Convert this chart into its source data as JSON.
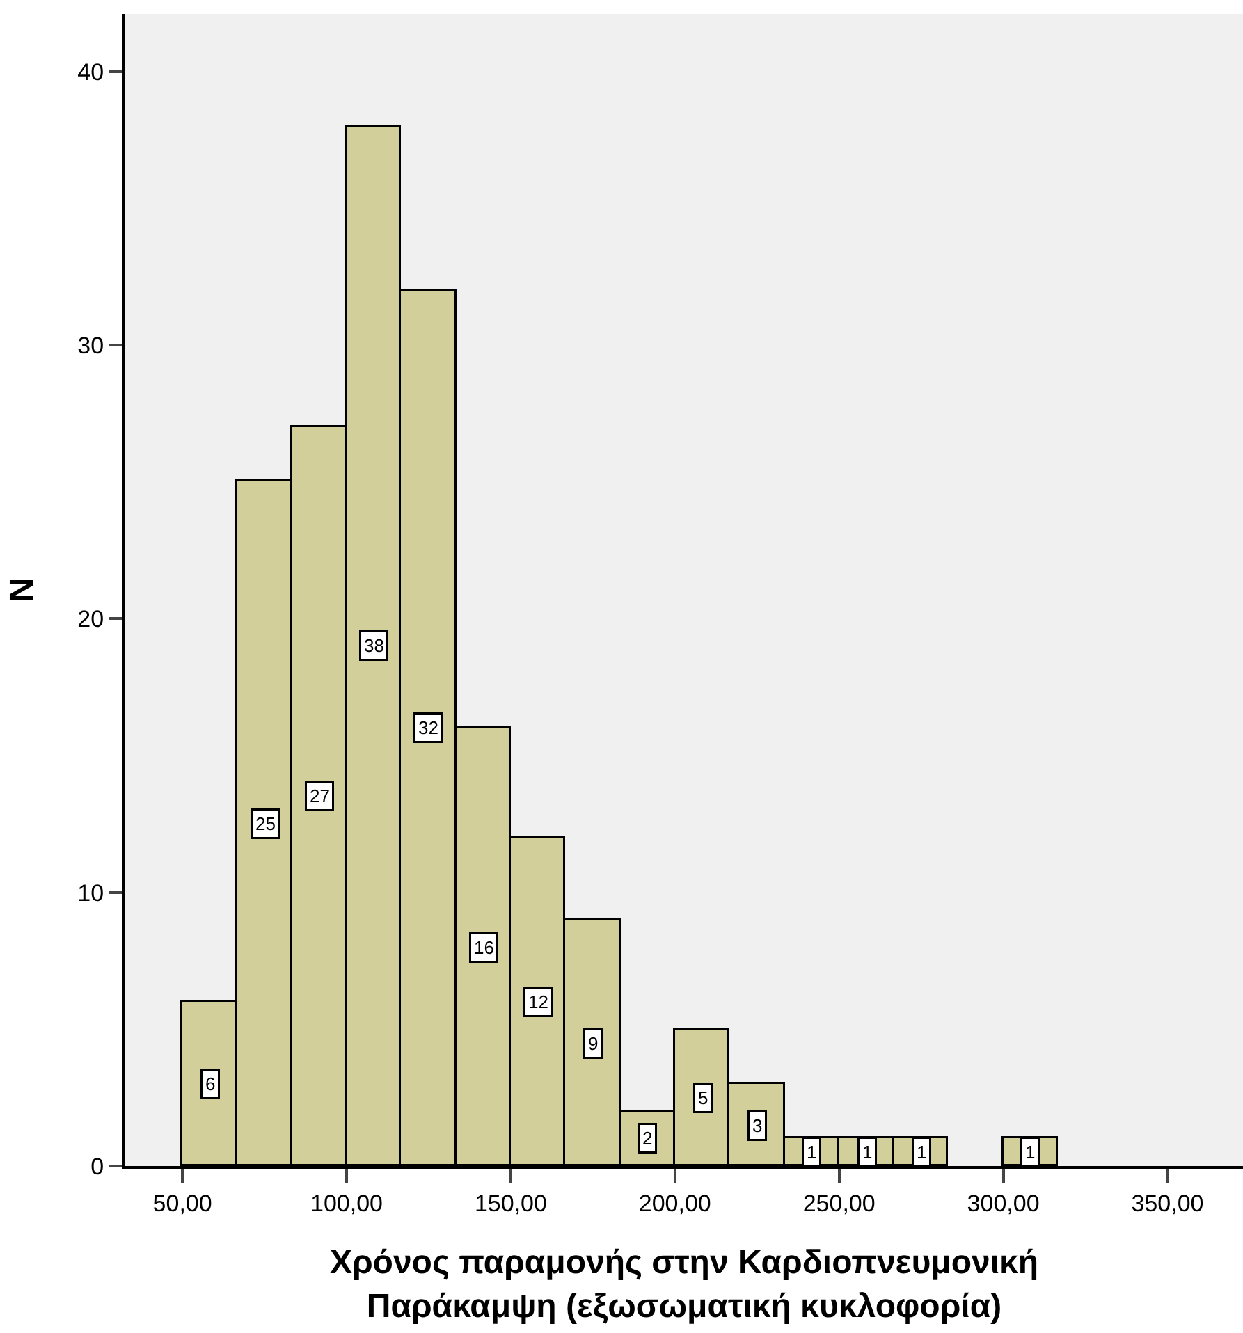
{
  "chart_data": {
    "type": "histogram",
    "xlabel": "Χρόνος παραμονής στην Καρδιοπνευμονική\nΠαράκαμψη (εξωσωματική κυκλοφορία)",
    "ylabel": "N",
    "bins": [
      50,
      66.67,
      83.33,
      100,
      116.67,
      133.33,
      150,
      166.67,
      183.33,
      200,
      216.67,
      233.33,
      250,
      266.67,
      283.33,
      300,
      316.67
    ],
    "values": [
      6,
      25,
      27,
      38,
      32,
      16,
      12,
      9,
      2,
      5,
      3,
      1,
      1,
      1,
      0,
      1
    ],
    "value_labels": [
      "6",
      "25",
      "27",
      "38",
      "32",
      "16",
      "12",
      "9",
      "2",
      "5",
      "3",
      "1",
      "1",
      "1",
      null,
      "1"
    ],
    "color": "#d3cf9a",
    "grid": false,
    "xlim": [
      32.6,
      373
    ],
    "xticks": [
      {
        "value": 50,
        "label": "50,00"
      },
      {
        "value": 100,
        "label": "100,00"
      },
      {
        "value": 150,
        "label": "150,00"
      },
      {
        "value": 200,
        "label": "200,00"
      },
      {
        "value": 250,
        "label": "250,00"
      },
      {
        "value": 300,
        "label": "300,00"
      },
      {
        "value": 350,
        "label": "350,00"
      }
    ],
    "ylim": [
      0,
      42.1
    ],
    "yticks": [
      0,
      10,
      20,
      30,
      40
    ]
  }
}
